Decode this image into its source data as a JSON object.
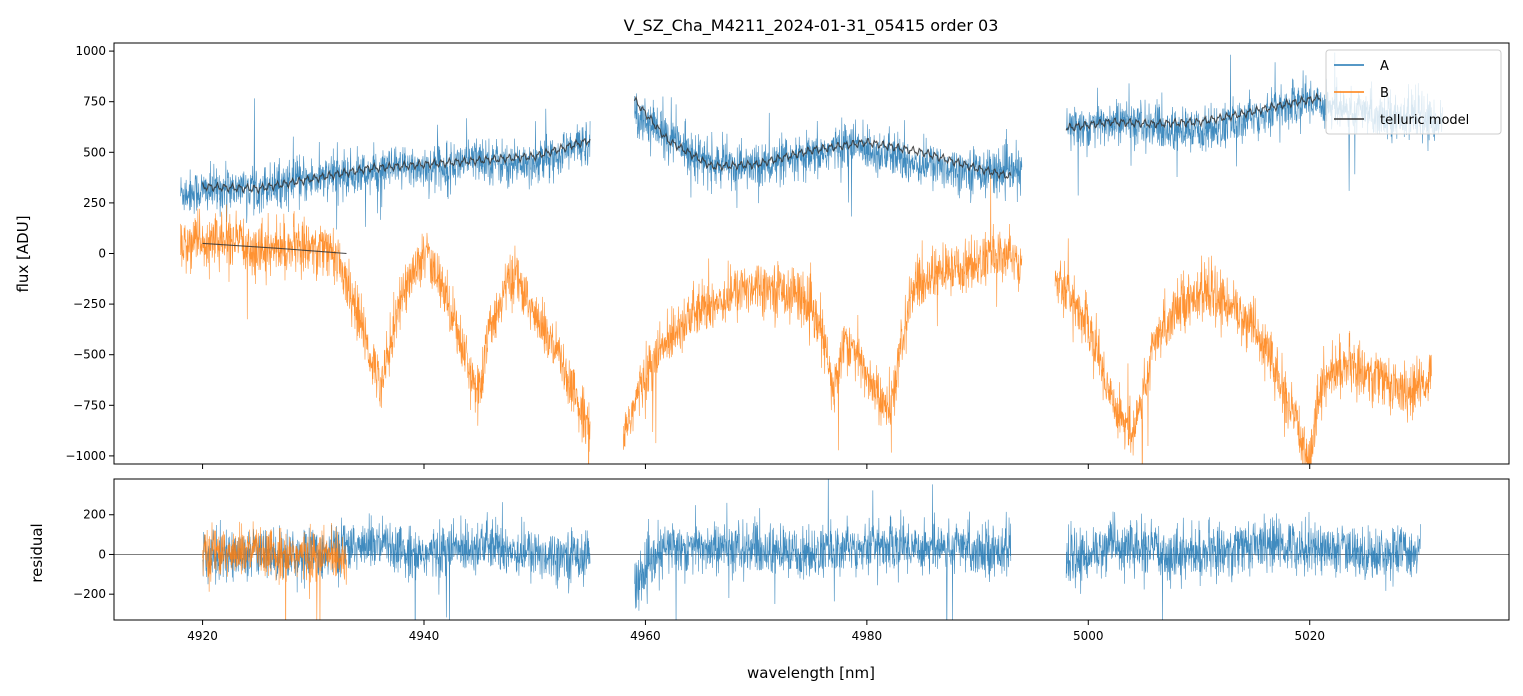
{
  "chart_data": [
    {
      "type": "line",
      "title": "V_SZ_Cha_M4211_2024-01-31_05415  order 03",
      "xlabel": "",
      "ylabel": "flux [ADU]",
      "xlim": [
        4912,
        5038
      ],
      "ylim": [
        -1040,
        1040
      ],
      "xticks": [
        4920,
        4940,
        4960,
        4980,
        5000,
        5020
      ],
      "yticks": [
        -1000,
        -750,
        -500,
        -250,
        0,
        250,
        500,
        750,
        1000
      ],
      "yticklabels": [
        "−1000",
        "−750",
        "−500",
        "−250",
        "0",
        "250",
        "500",
        "750",
        "1000"
      ],
      "legend": {
        "position": "top-right",
        "entries": [
          {
            "label": "A",
            "color": "#1f77b4"
          },
          {
            "label": "B",
            "color": "#ff7f0e"
          },
          {
            "label": "telluric model",
            "color": "#333333"
          }
        ]
      },
      "series": [
        {
          "name": "A",
          "color": "#1f77b4",
          "noise": 55,
          "segments": [
            {
              "x": [
                4918,
                4925,
                4932,
                4938,
                4942,
                4945,
                4948,
                4952,
                4955
              ],
              "y": [
                300,
                330,
                380,
                420,
                430,
                470,
                440,
                480,
                560
              ]
            },
            {
              "x": [
                4959,
                4962,
                4966,
                4970,
                4975,
                4978,
                4980,
                4984,
                4988,
                4994
              ],
              "y": [
                700,
                580,
                440,
                430,
                470,
                540,
                520,
                450,
                420,
                400
              ]
            },
            {
              "x": [
                4998,
                5003,
                5008,
                5012,
                5016,
                5020,
                5024,
                5028,
                5032
              ],
              "y": [
                620,
                650,
                600,
                620,
                700,
                760,
                700,
                680,
                650
              ]
            }
          ]
        },
        {
          "name": "B",
          "color": "#ff7f0e",
          "noise": 65,
          "segments": [
            {
              "x": [
                4918,
                4922,
                4926,
                4930,
                4932,
                4934,
                4936,
                4938,
                4940,
                4942,
                4944,
                4945,
                4946,
                4948,
                4950,
                4952,
                4954,
                4955
              ],
              "y": [
                50,
                60,
                20,
                40,
                0,
                -300,
                -650,
                -200,
                0,
                -200,
                -550,
                -700,
                -350,
                -100,
                -300,
                -500,
                -750,
                -850
              ]
            },
            {
              "x": [
                4958,
                4960,
                4963,
                4966,
                4970,
                4974,
                4976,
                4977,
                4978,
                4980,
                4982,
                4984,
                4986,
                4988,
                4990,
                4992,
                4994
              ],
              "y": [
                -900,
                -600,
                -350,
                -250,
                -150,
                -200,
                -400,
                -700,
                -400,
                -600,
                -800,
                -200,
                -100,
                -80,
                -50,
                0,
                -40
              ]
            },
            {
              "x": [
                4997,
                5000,
                5002,
                5004,
                5006,
                5008,
                5010,
                5013,
                5016,
                5018,
                5020,
                5021,
                5023,
                5026,
                5029,
                5031
              ],
              "y": [
                -100,
                -350,
                -700,
                -900,
                -450,
                -250,
                -200,
                -250,
                -450,
                -750,
                -1000,
                -650,
                -550,
                -600,
                -700,
                -600
              ]
            }
          ]
        }
      ],
      "model": {
        "name": "telluric model",
        "color": "#333333",
        "segments": [
          {
            "x": [
              4920,
              4925,
              4930,
              4935,
              4940,
              4945,
              4950,
              4955
            ],
            "y": [
              330,
              320,
              370,
              420,
              440,
              460,
              480,
              560
            ]
          },
          {
            "x": [
              4959,
              4962,
              4966,
              4970,
              4975,
              4980,
              4985,
              4990,
              4993
            ],
            "y": [
              760,
              560,
              430,
              440,
              510,
              550,
              500,
              420,
              380
            ]
          },
          {
            "x": [
              4998,
              5002,
              5006,
              5010,
              5014,
              5018,
              5021
            ],
            "y": [
              620,
              650,
              640,
              650,
              690,
              740,
              770
            ]
          },
          {
            "x": [
              4920,
              4927,
              4933
            ],
            "y": [
              50,
              25,
              0
            ]
          }
        ]
      }
    },
    {
      "type": "line",
      "title": "",
      "xlabel": "wavelength [nm]",
      "ylabel": "residual",
      "xlim": [
        4912,
        5038
      ],
      "ylim": [
        -330,
        380
      ],
      "xticks": [
        4920,
        4940,
        4960,
        4980,
        5000,
        5020
      ],
      "xticklabels": [
        "4920",
        "4940",
        "4960",
        "4980",
        "5000",
        "5020"
      ],
      "yticks": [
        -200,
        0,
        200
      ],
      "yticklabels": [
        "−200",
        "0",
        "200"
      ],
      "series": [
        {
          "name": "A",
          "color": "#1f77b4",
          "noise": 65,
          "segments": [
            {
              "x": [
                4920,
                4930,
                4935,
                4940,
                4945,
                4950,
                4955
              ],
              "y": [
                0,
                0,
                50,
                0,
                50,
                0,
                0
              ]
            },
            {
              "x": [
                4959,
                4962,
                4970,
                4975,
                4980,
                4985,
                4993
              ],
              "y": [
                -150,
                40,
                20,
                0,
                50,
                40,
                20
              ]
            },
            {
              "x": [
                4998,
                5002,
                5005,
                5010,
                5015,
                5020,
                5025,
                5030
              ],
              "y": [
                -50,
                50,
                20,
                0,
                50,
                40,
                0,
                20
              ]
            }
          ]
        },
        {
          "name": "B",
          "color": "#ff7f0e",
          "noise": 65,
          "segments": [
            {
              "x": [
                4920,
                4925,
                4930,
                4933
              ],
              "y": [
                0,
                10,
                -10,
                0
              ]
            }
          ]
        }
      ],
      "reference_line": {
        "y": 0,
        "color": "#555555"
      }
    }
  ]
}
